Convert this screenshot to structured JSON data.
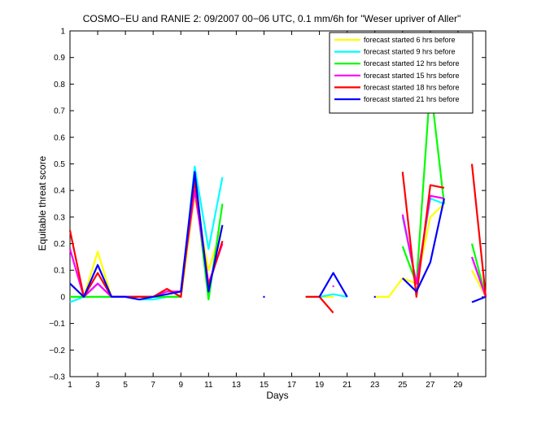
{
  "chart_data": {
    "type": "line",
    "title": "COSMO−EU and RANIE 2: 09/2007 00−06 UTC, 0.1 mm/6h for \"Weser upriver of Aller\"",
    "xlabel": "Days",
    "ylabel": "Equitable threat score",
    "xlim": [
      1,
      31
    ],
    "ylim": [
      -0.3,
      1
    ],
    "xticks": [
      1,
      3,
      5,
      7,
      9,
      11,
      13,
      15,
      17,
      19,
      21,
      23,
      25,
      27,
      29
    ],
    "yticks": [
      -0.3,
      -0.2,
      -0.1,
      0,
      0.1,
      0.2,
      0.3,
      0.4,
      0.5,
      0.6,
      0.7,
      0.8,
      0.9,
      1
    ],
    "ytick_labels": [
      "−0.3",
      "−0.2",
      "−0.1",
      "0",
      "0.1",
      "0.2",
      "0.3",
      "0.4",
      "0.5",
      "0.6",
      "0.7",
      "0.8",
      "0.9",
      "1"
    ],
    "grid": false,
    "legend_position": "top-right",
    "x": [
      1,
      2,
      3,
      4,
      5,
      6,
      7,
      8,
      9,
      10,
      11,
      12,
      13,
      14,
      15,
      16,
      17,
      18,
      19,
      20,
      21,
      22,
      23,
      24,
      25,
      26,
      27,
      28,
      29,
      30,
      31
    ],
    "series": [
      {
        "name": "forecast started 6 hrs before",
        "color": "#ffff00",
        "values": [
          0.05,
          0.0,
          0.17,
          0.0,
          0.0,
          0.0,
          0.0,
          0.0,
          0.0,
          0.38,
          0.1,
          0.27,
          null,
          null,
          null,
          null,
          null,
          0.0,
          0.0,
          0.0,
          null,
          null,
          0.0,
          0.0,
          0.07,
          0.05,
          0.3,
          0.35,
          null,
          0.1,
          0.0
        ]
      },
      {
        "name": "forecast started 9 hrs before",
        "color": "#00ffff",
        "values": [
          -0.02,
          0.0,
          0.05,
          0.0,
          0.0,
          -0.01,
          -0.01,
          0.0,
          0.0,
          0.49,
          0.18,
          0.45,
          null,
          null,
          null,
          null,
          null,
          0.0,
          0.0,
          0.01,
          0.0,
          null,
          null,
          null,
          0.3,
          0.05,
          0.37,
          0.35,
          null,
          0.15,
          0.0
        ]
      },
      {
        "name": "forecast started 12 hrs before",
        "color": "#00ff00",
        "values": [
          0.0,
          0.0,
          0.0,
          0.0,
          0.0,
          0.0,
          0.0,
          0.0,
          0.0,
          0.43,
          -0.01,
          0.35,
          null,
          null,
          null,
          null,
          null,
          null,
          null,
          null,
          null,
          null,
          null,
          null,
          0.19,
          0.05,
          0.8,
          0.35,
          null,
          0.2,
          0.0
        ]
      },
      {
        "name": "forecast started 15 hrs before",
        "color": "#ff00ff",
        "values": [
          0.18,
          0.0,
          0.05,
          0.0,
          0.0,
          0.0,
          0.0,
          0.02,
          0.02,
          0.4,
          0.05,
          0.2,
          null,
          null,
          null,
          null,
          null,
          null,
          null,
          0.04,
          null,
          null,
          null,
          null,
          0.31,
          0.05,
          0.38,
          0.37,
          null,
          0.15,
          0.0
        ]
      },
      {
        "name": "forecast started 18 hrs before",
        "color": "#ff0000",
        "values": [
          0.25,
          0.0,
          0.09,
          0.0,
          0.0,
          0.0,
          0.0,
          0.03,
          0.0,
          0.44,
          0.04,
          0.21,
          null,
          null,
          null,
          null,
          null,
          0.0,
          0.0,
          -0.06,
          null,
          null,
          null,
          null,
          0.47,
          0.0,
          0.42,
          0.41,
          null,
          0.5,
          0.0
        ]
      },
      {
        "name": "forecast started 21 hrs before",
        "color": "#0000ff",
        "values": [
          0.05,
          0.0,
          0.12,
          0.0,
          0.0,
          -0.01,
          0.0,
          0.01,
          0.02,
          0.47,
          0.02,
          0.27,
          null,
          null,
          0.0,
          null,
          null,
          null,
          0.0,
          0.09,
          0.0,
          null,
          0.0,
          null,
          0.07,
          0.02,
          0.13,
          0.37,
          null,
          -0.02,
          0.0
        ]
      }
    ]
  }
}
